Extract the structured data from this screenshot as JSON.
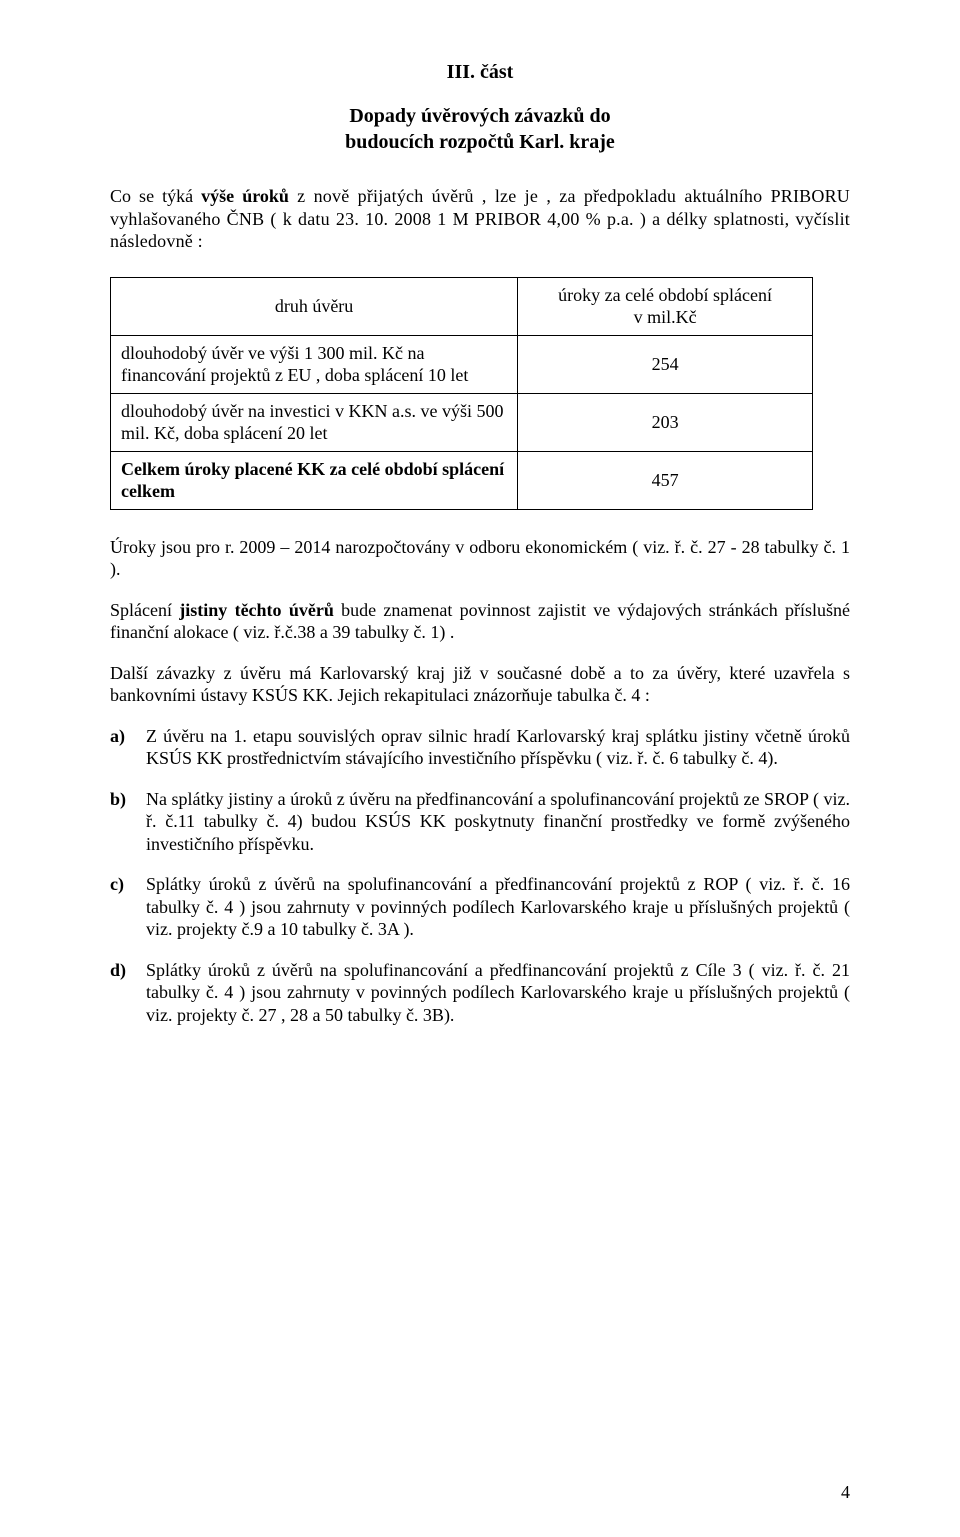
{
  "header": {
    "section_label": "III. část",
    "title_line1": "Dopady úvěrových závazků do",
    "title_line2": "budoucích rozpočtů Karl. kraje"
  },
  "intro": {
    "p1_prefix": "Co se týká ",
    "p1_bold": "výše úroků",
    "p1_suffix": " z nově přijatých úvěrů , lze je , za předpokladu aktuálního PRIBORU vyhlašovaného ČNB ( k datu 23. 10. 2008 1 M PRIBOR 4,00 % p.a. ) a délky splatnosti, vyčíslit následovně :"
  },
  "table": {
    "header_left": "druh úvěru",
    "header_right_line1": "úroky za celé období splácení",
    "header_right_line2": "v mil.Kč",
    "rows": [
      {
        "desc": "dlouhodobý úvěr ve výši 1 300 mil. Kč na financování projektů z EU , doba splácení  10 let",
        "value": "254",
        "bold": false
      },
      {
        "desc": "dlouhodobý úvěr na investici v KKN a.s. ve výši 500 mil. Kč,  doba splácení 20 let",
        "value": "203",
        "bold": false
      },
      {
        "desc": "Celkem úroky placené KK za celé období splácení celkem",
        "value": "457",
        "bold": true
      }
    ]
  },
  "body": {
    "p2": "Úroky jsou  pro r. 2009 – 2014  narozpočtovány v odboru ekonomickém ( viz. ř. č. 27 -  28 tabulky č. 1 ).",
    "p3_prefix": "Splácení ",
    "p3_bold": "jistiny těchto úvěrů ",
    "p3_suffix": "  bude znamenat povinnost zajistit ve výdajových stránkách příslušné finanční alokace ( viz. ř.č.38 a 39 tabulky č. 1) .",
    "p4": "Další závazky z úvěru má Karlovarský kraj již v současné době a to za úvěry, které uzavřela s bankovními ústavy KSÚS KK. Jejich rekapitulaci znázorňuje tabulka č. 4 :"
  },
  "list": [
    {
      "label": "a)",
      "text": "Z úvěru na 1. etapu souvislých oprav silnic hradí Karlovarský kraj splátku jistiny včetně úroků KSÚS KK prostřednictvím stávajícího investičního příspěvku ( viz. ř. č. 6 tabulky č. 4)."
    },
    {
      "label": "b)",
      "text": "Na splátky jistiny a úroků z úvěru na předfinancování a spolufinancování projektů ze SROP   ( viz. ř. č.11 tabulky č. 4) budou KSÚS KK poskytnuty finanční prostředky ve formě zvýšeného investičního příspěvku."
    },
    {
      "label": "c)",
      "text": "Splátky úroků z úvěrů na spolufinancování a předfinancování projektů z ROP ( viz. ř. č. 16 tabulky č. 4 ) jsou zahrnuty v povinných podílech Karlovarského kraje u příslušných projektů ( viz. projekty č.9 a 10  tabulky č. 3A )."
    },
    {
      "label": "d)",
      "text": "Splátky úroků z úvěrů na spolufinancování a předfinancování projektů z Cíle 3  ( viz. ř. č. 21  tabulky č. 4 )  jsou zahrnuty  v povinných podílech Karlovarského kraje u příslušných projektů ( viz.  projekty č. 27 , 28 a 50  tabulky č. 3B)."
    }
  ],
  "page_number": "4",
  "colors": {
    "text": "#000000",
    "background": "#ffffff",
    "border": "#000000"
  }
}
